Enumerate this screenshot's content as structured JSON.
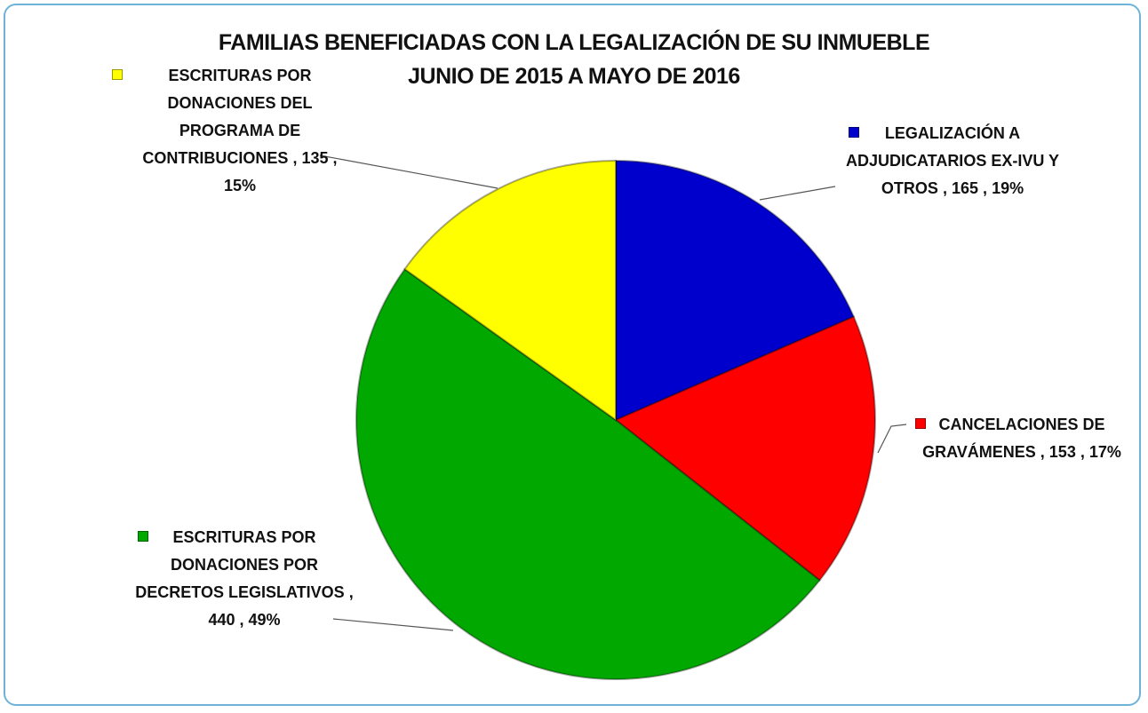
{
  "chart_data": {
    "type": "pie",
    "title": "FAMILIAS BENEFICIADAS CON LA LEGALIZACIÓN DE SU INMUEBLE",
    "subtitle": "JUNIO DE 2015 A MAYO DE 2016",
    "categories": [
      "LEGALIZACIÓN A ADJUDICATARIOS EX-IVU Y OTROS",
      "CANCELACIONES DE GRAVÁMENES",
      "ESCRITURAS POR DONACIONES POR DECRETOS LEGISLATIVOS",
      "ESCRITURAS POR DONACIONES DEL PROGRAMA DE CONTRIBUCIONES"
    ],
    "values": [
      165,
      153,
      440,
      135
    ],
    "percent_labels": [
      "19%",
      "17%",
      "49%",
      "15%"
    ],
    "label_separator": ",",
    "colors": [
      "#0000cc",
      "#ff0000",
      "#00a800",
      "#ffff00"
    ]
  }
}
